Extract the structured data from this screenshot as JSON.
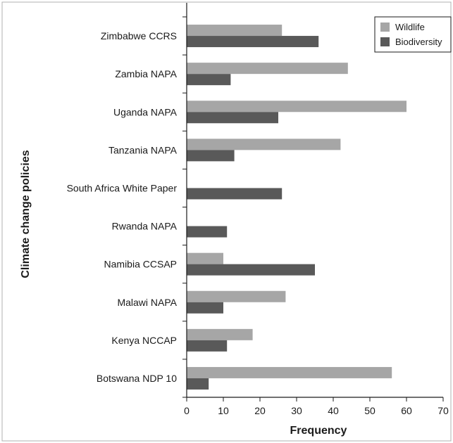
{
  "chart_data": {
    "type": "bar",
    "orientation": "horizontal",
    "categories": [
      "Zimbabwe CCRS",
      "Zambia NAPA",
      "Uganda NAPA",
      "Tanzania NAPA",
      "South Africa White Paper",
      "Rwanda NAPA",
      "Namibia CCSAP",
      "Malawi NAPA",
      "Kenya NCCAP",
      "Botswana NDP 10"
    ],
    "series": [
      {
        "name": "Wildlife",
        "color": "#a6a6a6",
        "values": [
          26,
          44,
          60,
          42,
          0,
          0,
          10,
          27,
          18,
          56
        ]
      },
      {
        "name": "Biodiversity",
        "color": "#595959",
        "values": [
          36,
          12,
          25,
          13,
          26,
          11,
          35,
          10,
          11,
          6
        ]
      }
    ],
    "xlabel": "Frequency",
    "ylabel": "Climate change policies",
    "xlim": [
      0,
      70
    ],
    "xticks": [
      "0",
      "10",
      "20",
      "30",
      "40",
      "50",
      "60",
      "70"
    ],
    "grid": false,
    "legend_position": "top-right"
  }
}
